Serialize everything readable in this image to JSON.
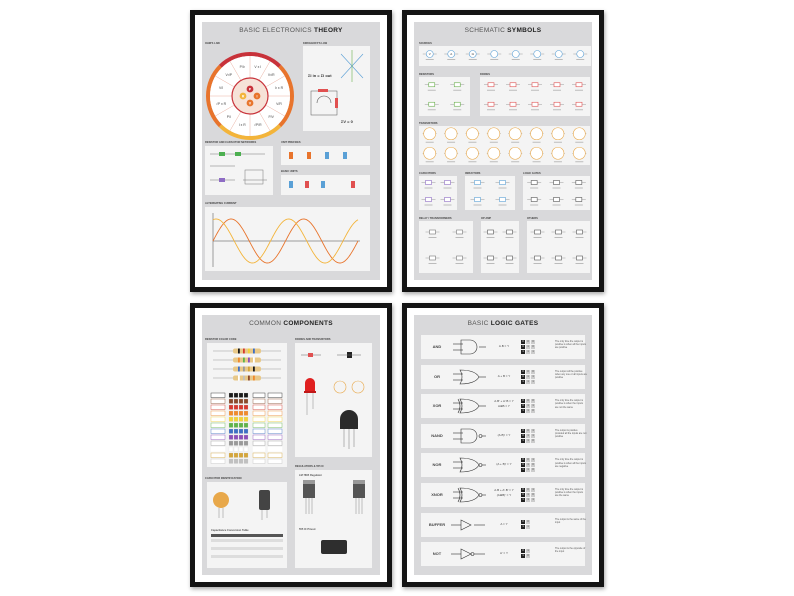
{
  "posters": [
    {
      "title_light": "BASIC ELECTRONICS",
      "title_bold": "THEORY",
      "sections": {
        "ohms_law": "OHM'S LAW",
        "kirchhoff": "KIRCHHOFF'S LAW",
        "networks": "RESISTOR AND CAPACITOR NETWORKS",
        "unit_prefixes": "UNIT PREFIXES",
        "basic_units": "BASIC UNITS",
        "ac": "ALTERNATING CURRENT"
      },
      "ohm_center": [
        "P",
        "I",
        "V",
        "R"
      ],
      "ohm_formulas": [
        "V x I",
        "V²/R",
        "I² x R",
        "V/R",
        "P/V",
        "√P/R",
        "I x R",
        "P/I",
        "√P x R",
        "V/I",
        "V²/P",
        "P/I²"
      ],
      "kirchhoff_eq1": "ΣI in = ΣI out",
      "kirchhoff_eq2": "ΣV = 0"
    },
    {
      "title_light": "SCHEMATIC",
      "title_bold": "SYMBOLS",
      "sections": [
        "SOURCES",
        "RESISTORS",
        "DIODES",
        "TRANSISTORS",
        "CAPACITORS",
        "INDUCTORS",
        "LOGIC GATES",
        "RELAY / TRANSFORMERS",
        "OP AMP",
        "OTHERS"
      ],
      "source_symbols": [
        "V",
        "A",
        "Ω"
      ]
    },
    {
      "title_light": "COMMON",
      "title_bold": "COMPONENTS",
      "sections": {
        "resistor_code": "RESISTOR COLOR CODE",
        "capacitor_id": "CAPACITOR IDENTIFICATION",
        "diodes": "DIODES AND TRANSISTORS",
        "regulators": "REGULATORS & 555 IC"
      },
      "color_bands": [
        "#1a1a1a",
        "#8b4a2b",
        "#d63a2f",
        "#f08a2c",
        "#f2d23a",
        "#5fb34a",
        "#3e6fc4",
        "#8d4fb8",
        "#999999",
        "#ffffff",
        "#d4a53a",
        "#c0c0c0"
      ],
      "capacitor_table_title": "Capacitance Conversion Table",
      "regulator_title": "LM 7805 Regulator",
      "ic_title": "555 IC Pinout"
    },
    {
      "title_light": "BASIC",
      "title_bold": "LOGIC GATES",
      "gates": [
        {
          "name": "AND",
          "eq": [
            "A.B = Y"
          ],
          "truth": [
            [
              "0",
              "0",
              "0"
            ],
            [
              "0",
              "1",
              "0"
            ],
            [
              "1",
              "1",
              "1"
            ]
          ],
          "desc": "The only time the output is positive is when all the inputs are positive"
        },
        {
          "name": "OR",
          "eq": [
            "A + B = Y"
          ],
          "truth": [
            [
              "0",
              "0",
              "0"
            ],
            [
              "0",
              "1",
              "1"
            ],
            [
              "1",
              "1",
              "1"
            ]
          ],
          "desc": "The output will be positive when any one or all inputs are positive"
        },
        {
          "name": "XOR",
          "eq": [
            "A.B' + A'.B = Y",
            "A⊕B = Y"
          ],
          "truth": [
            [
              "0",
              "0",
              "0"
            ],
            [
              "0",
              "1",
              "1"
            ],
            [
              "1",
              "1",
              "0"
            ]
          ],
          "desc": "The only time the output is positive is when the inputs are not the same"
        },
        {
          "name": "NAND",
          "eq": [
            "(A.B)' = Y"
          ],
          "truth": [
            [
              "0",
              "0",
              "1"
            ],
            [
              "0",
              "1",
              "1"
            ],
            [
              "1",
              "1",
              "0"
            ]
          ],
          "desc": "The output is positive provided all the inputs are not positive"
        },
        {
          "name": "NOR",
          "eq": [
            "(A + B)' = Y"
          ],
          "truth": [
            [
              "0",
              "0",
              "1"
            ],
            [
              "0",
              "1",
              "0"
            ],
            [
              "1",
              "1",
              "0"
            ]
          ],
          "desc": "The only time the output is positive is when all the inputs are negative"
        },
        {
          "name": "XNOR",
          "eq": [
            "A.B + A'.B' = Y",
            "(A⊕B)' = Y"
          ],
          "truth": [
            [
              "0",
              "0",
              "1"
            ],
            [
              "0",
              "1",
              "0"
            ],
            [
              "1",
              "1",
              "1"
            ]
          ],
          "desc": "The only time the output is positive is when the inputs are the same"
        },
        {
          "name": "BUFFER",
          "eq": [
            "A = Y"
          ],
          "truth": [
            [
              "0",
              "0"
            ],
            [
              "1",
              "1"
            ]
          ],
          "desc": "The output is the same of the input"
        },
        {
          "name": "NOT",
          "eq": [
            "A' = Y"
          ],
          "truth": [
            [
              "0",
              "1"
            ],
            [
              "1",
              "0"
            ]
          ],
          "desc": "The output is the opposite of the input"
        }
      ]
    }
  ],
  "colors": {
    "frame": "#141414",
    "panel": "#d9d9db",
    "accent_red": "#c8323a",
    "accent_orange": "#e8742c",
    "accent_yellow": "#f3b43a"
  }
}
